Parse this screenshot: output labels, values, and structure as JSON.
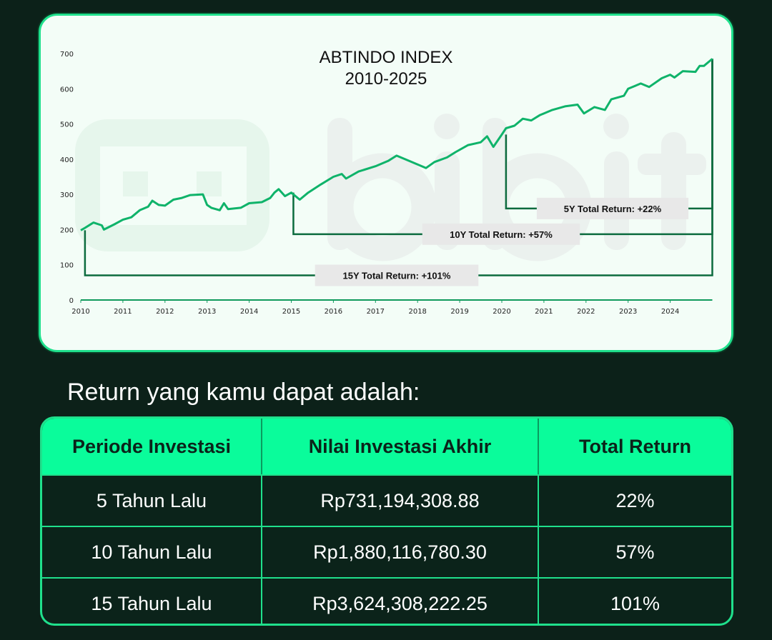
{
  "chart_data": {
    "type": "line",
    "title": "ABTINDO INDEX",
    "subtitle": "2010-2025",
    "xlim": [
      2010,
      2025
    ],
    "ylim": [
      0,
      700
    ],
    "x_ticks": [
      "2010",
      "2011",
      "2012",
      "2013",
      "2014",
      "2015",
      "2016",
      "2017",
      "2018",
      "2019",
      "2020",
      "2021",
      "2022",
      "2023",
      "2024"
    ],
    "y_ticks": [
      "0",
      "100",
      "200",
      "300",
      "400",
      "500",
      "600",
      "700"
    ],
    "grid": false,
    "line_color": "#0fb36a",
    "series": [
      {
        "x": [
          2010.0,
          2010.1,
          2010.3,
          2010.5,
          2010.55,
          2010.8,
          2011.0,
          2011.2,
          2011.4,
          2011.6,
          2011.7,
          2011.85,
          2012.0,
          2012.2,
          2012.4,
          2012.6,
          2012.9,
          2013.0,
          2013.1,
          2013.3,
          2013.4,
          2013.5,
          2013.8,
          2014.0,
          2014.3,
          2014.5,
          2014.6,
          2014.7,
          2014.85,
          2015.0,
          2015.2,
          2015.4,
          2015.7,
          2016.0,
          2016.2,
          2016.3,
          2016.6,
          2017.0,
          2017.3,
          2017.5,
          2017.8,
          2018.0,
          2018.2,
          2018.4,
          2018.7,
          2018.9,
          2019.2,
          2019.5,
          2019.65,
          2019.8,
          2020.0,
          2020.1,
          2020.3,
          2020.5,
          2020.7,
          2020.9,
          2021.2,
          2021.5,
          2021.8,
          2021.95,
          2022.2,
          2022.45,
          2022.6,
          2022.9,
          2023.0,
          2023.3,
          2023.5,
          2023.8,
          2024.0,
          2024.1,
          2024.3,
          2024.6,
          2024.7,
          2024.8,
          2025.0
        ],
        "values": [
          198,
          205,
          220,
          212,
          200,
          215,
          228,
          235,
          255,
          265,
          282,
          270,
          268,
          285,
          290,
          298,
          300,
          270,
          262,
          255,
          275,
          258,
          262,
          275,
          278,
          290,
          305,
          315,
          295,
          305,
          285,
          305,
          328,
          350,
          358,
          345,
          365,
          380,
          395,
          410,
          395,
          385,
          375,
          392,
          405,
          420,
          440,
          448,
          465,
          435,
          470,
          488,
          495,
          515,
          510,
          525,
          540,
          550,
          555,
          530,
          548,
          540,
          570,
          580,
          600,
          615,
          605,
          630,
          640,
          632,
          650,
          648,
          665,
          665,
          685
        ]
      }
    ],
    "annotations": [
      {
        "label": "5Y Total Return: +22%",
        "from": 2020.1,
        "to": 2025.0,
        "level": 260
      },
      {
        "label": "10Y Total Return: +57%",
        "from": 2015.05,
        "to": 2025.0,
        "level": 187
      },
      {
        "label": "15Y Total Return: +101%",
        "from": 2010.1,
        "to": 2025.0,
        "level": 70
      }
    ],
    "watermark": "bibit"
  },
  "heading": "Return yang kamu dapat adalah:",
  "table": {
    "headers": [
      "Periode Investasi",
      "Nilai Investasi Akhir",
      "Total Return"
    ],
    "rows": [
      [
        "5 Tahun Lalu",
        "Rp731,194,308.88",
        "22%"
      ],
      [
        "10 Tahun Lalu",
        "Rp1,880,116,780.30",
        "57%"
      ],
      [
        "15 Tahun Lalu",
        "Rp3,624,308,222.25",
        "101%"
      ]
    ]
  }
}
